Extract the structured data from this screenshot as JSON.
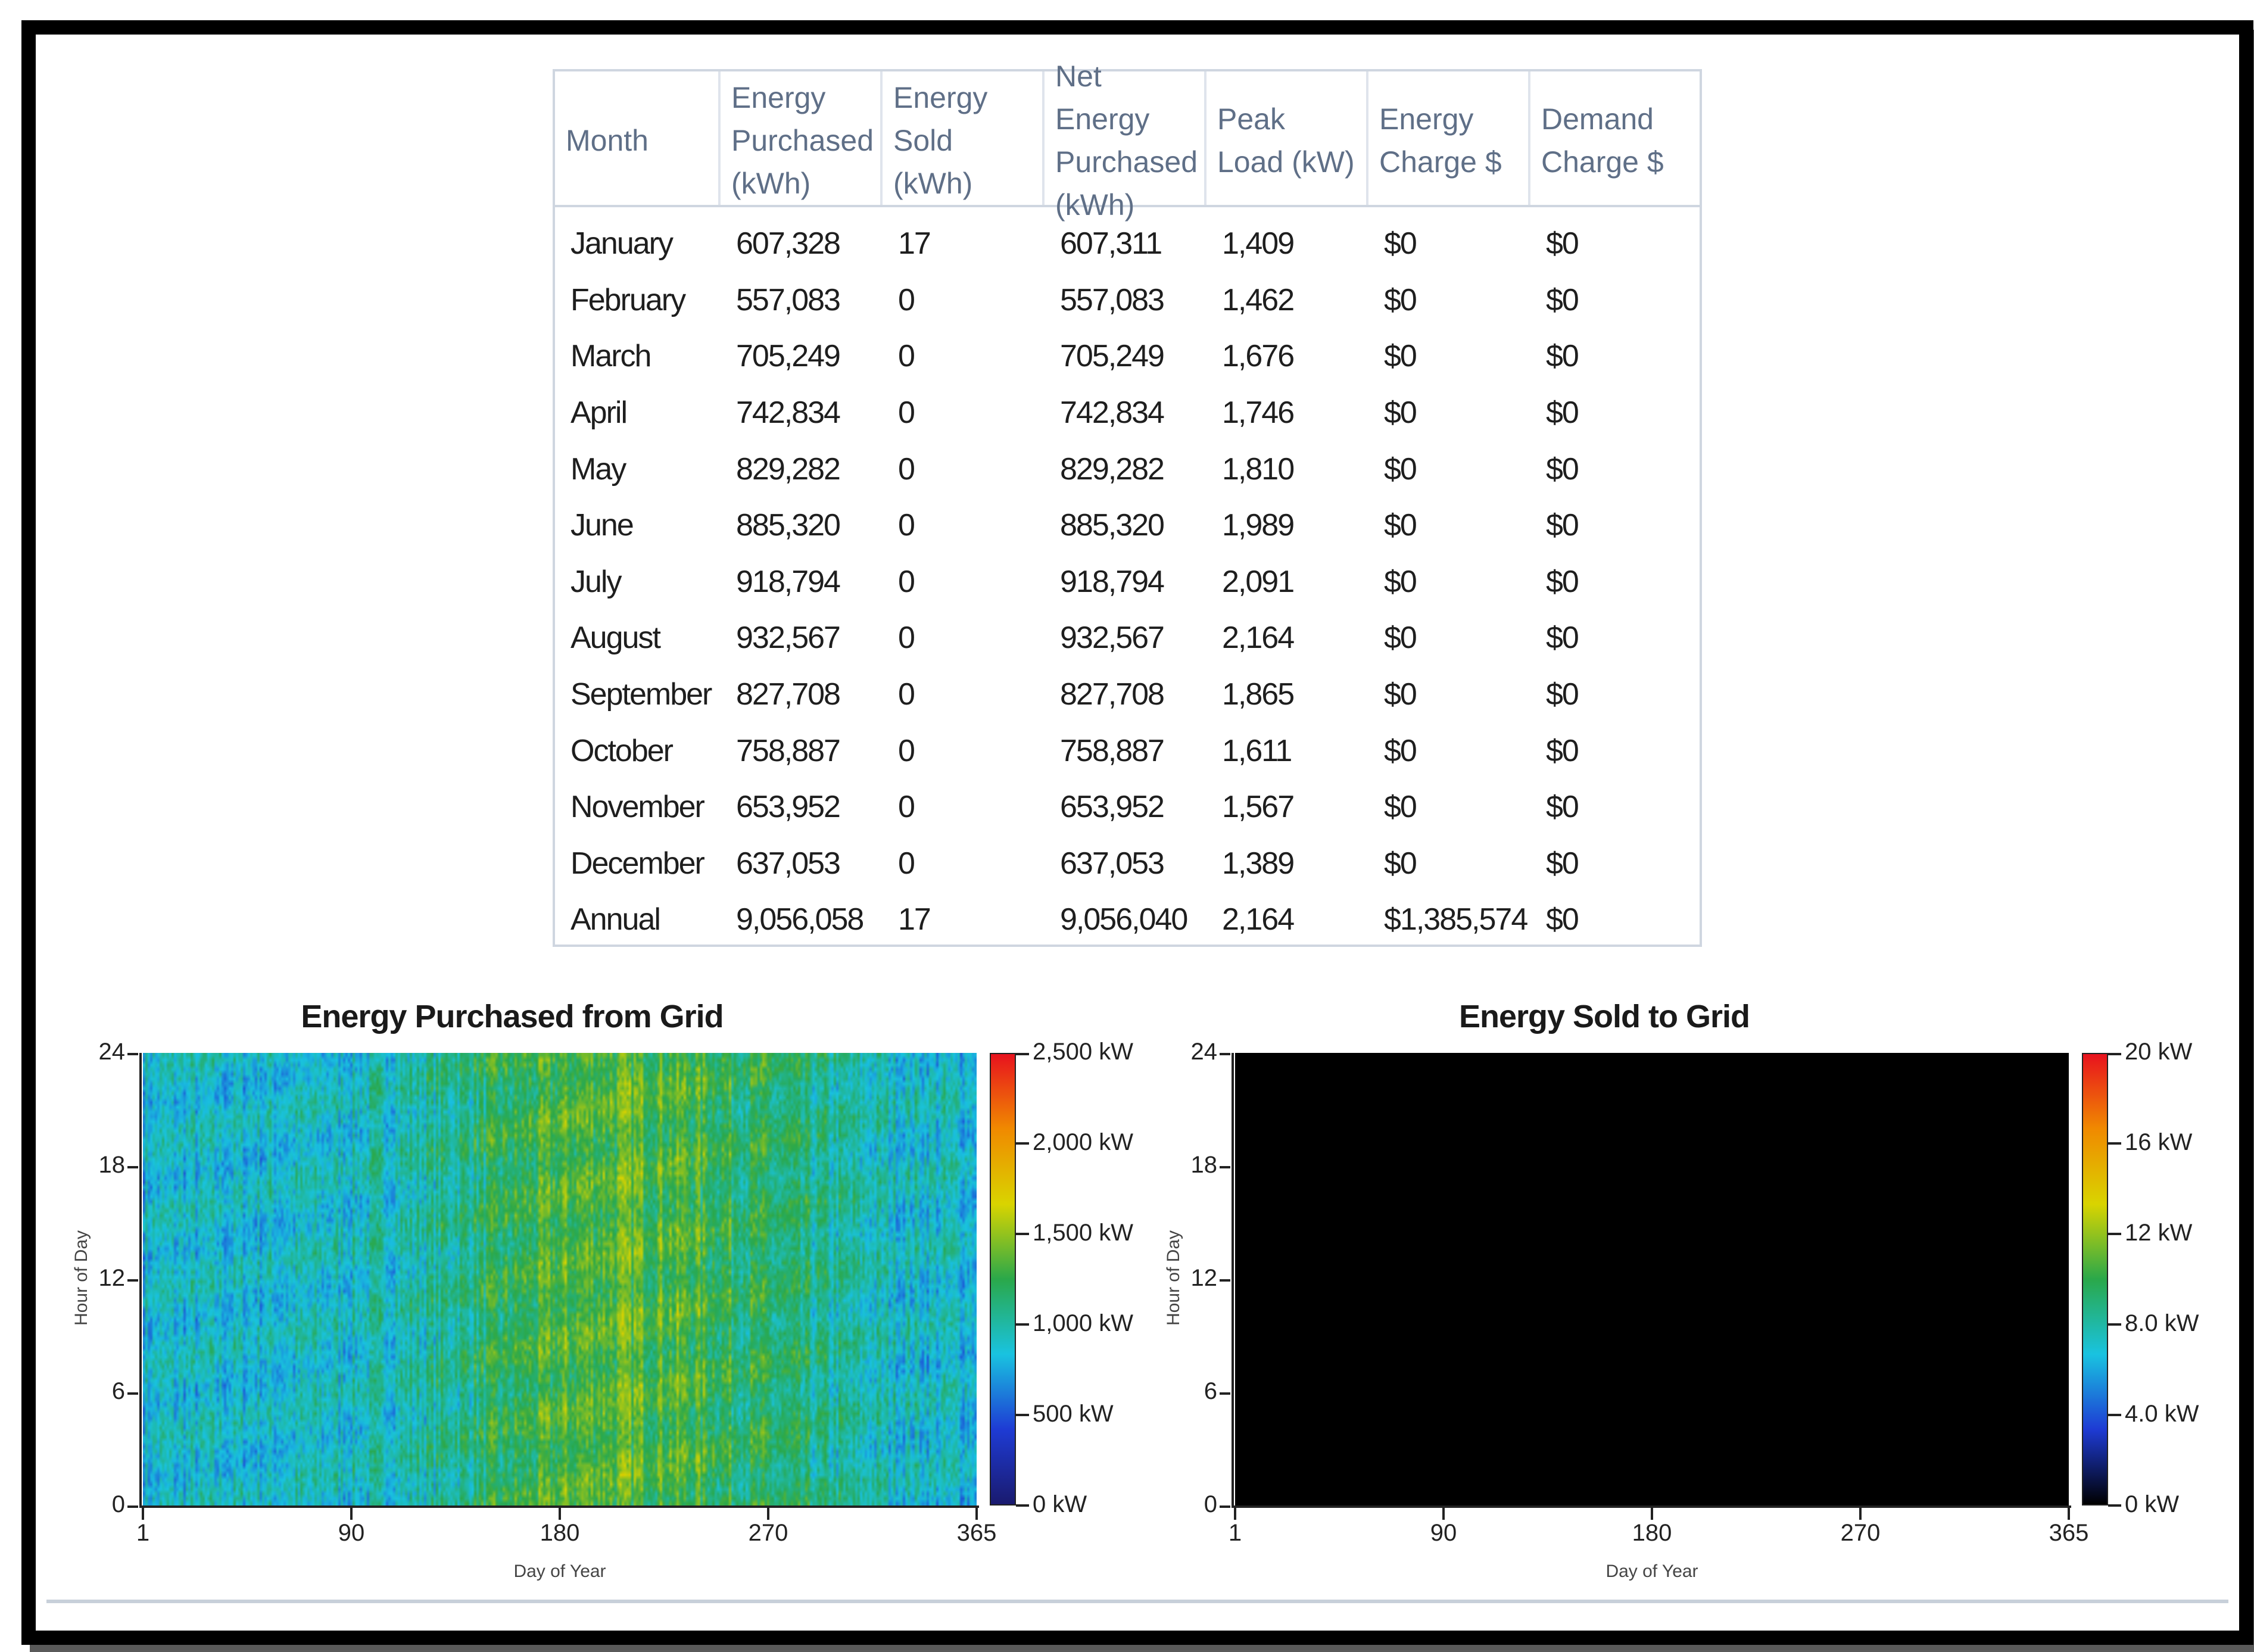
{
  "table": {
    "headers": [
      "Month",
      "Energy Purchased (kWh)",
      "Energy Sold (kWh)",
      "Net Energy Purchased (kWh)",
      "Peak Load (kW)",
      "Energy Charge $",
      "Demand Charge $"
    ],
    "rows": [
      [
        "January",
        "607,328",
        "17",
        "607,311",
        "1,409",
        "$0",
        "$0"
      ],
      [
        "February",
        "557,083",
        "0",
        "557,083",
        "1,462",
        "$0",
        "$0"
      ],
      [
        "March",
        "705,249",
        "0",
        "705,249",
        "1,676",
        "$0",
        "$0"
      ],
      [
        "April",
        "742,834",
        "0",
        "742,834",
        "1,746",
        "$0",
        "$0"
      ],
      [
        "May",
        "829,282",
        "0",
        "829,282",
        "1,810",
        "$0",
        "$0"
      ],
      [
        "June",
        "885,320",
        "0",
        "885,320",
        "1,989",
        "$0",
        "$0"
      ],
      [
        "July",
        "918,794",
        "0",
        "918,794",
        "2,091",
        "$0",
        "$0"
      ],
      [
        "August",
        "932,567",
        "0",
        "932,567",
        "2,164",
        "$0",
        "$0"
      ],
      [
        "September",
        "827,708",
        "0",
        "827,708",
        "1,865",
        "$0",
        "$0"
      ],
      [
        "October",
        "758,887",
        "0",
        "758,887",
        "1,611",
        "$0",
        "$0"
      ],
      [
        "November",
        "653,952",
        "0",
        "653,952",
        "1,567",
        "$0",
        "$0"
      ],
      [
        "December",
        "637,053",
        "0",
        "637,053",
        "1,389",
        "$0",
        "$0"
      ],
      [
        "Annual",
        "9,056,058",
        "17",
        "9,056,040",
        "2,164",
        "$1,385,574",
        "$0"
      ]
    ]
  },
  "chart_data": [
    {
      "type": "heatmap",
      "title": "Energy Purchased from Grid",
      "xlabel": "Day of Year",
      "ylabel": "Hour of Day",
      "xticks": [
        "1",
        "90",
        "180",
        "270",
        "365"
      ],
      "yticks": [
        "0",
        "6",
        "12",
        "18",
        "24"
      ],
      "xlim": [
        1,
        365
      ],
      "ylim": [
        0,
        24
      ],
      "colorbar_ticks": [
        "0 kW",
        "500 kW",
        "1,000 kW",
        "1,500 kW",
        "2,000 kW",
        "2,500 kW"
      ],
      "colorbar_range": [
        0,
        2500
      ],
      "colorscale": [
        "#1a1a6e",
        "#1e3bd4",
        "#19c3e0",
        "#2aa84a",
        "#d9d400",
        "#f08a00",
        "#e8121e"
      ]
    },
    {
      "type": "heatmap",
      "title": "Energy Sold to Grid",
      "xlabel": "Day of Year",
      "ylabel": "Hour of Day",
      "xticks": [
        "1",
        "90",
        "180",
        "270",
        "365"
      ],
      "yticks": [
        "0",
        "6",
        "12",
        "18",
        "24"
      ],
      "xlim": [
        1,
        365
      ],
      "ylim": [
        0,
        24
      ],
      "colorbar_ticks": [
        "0 kW",
        "4.0 kW",
        "8.0 kW",
        "12 kW",
        "16 kW",
        "20 kW"
      ],
      "colorbar_range": [
        0,
        20
      ],
      "colorscale": [
        "#000000",
        "#1e3bd4",
        "#19c3e0",
        "#2aa84a",
        "#d9d400",
        "#f08a00",
        "#e8121e"
      ]
    }
  ]
}
